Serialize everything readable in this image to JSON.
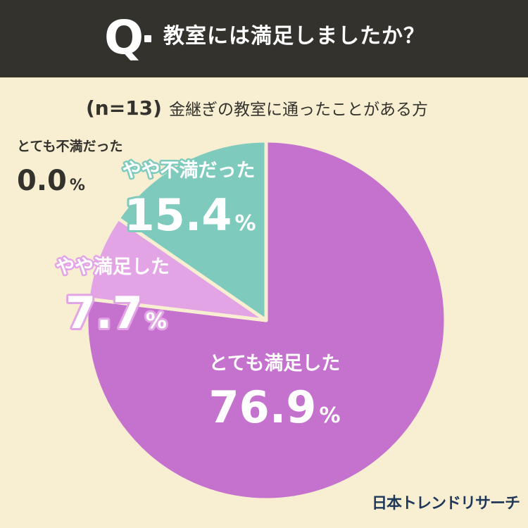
{
  "header": {
    "q_mark": "Q",
    "question": "教室には満足しましたか？",
    "background": "#33322d"
  },
  "subtitle": {
    "n_label": "(n=13)",
    "description": "金継ぎの教室に通ったことがある方"
  },
  "chart_data": {
    "type": "pie",
    "title": "教室には満足しましたか？",
    "slices": [
      {
        "label": "とても満足した",
        "value": 76.9,
        "display": "76.9",
        "color": "#c571ce"
      },
      {
        "label": "やや満足した",
        "value": 7.7,
        "display": "7.7",
        "color": "#e3a4e6"
      },
      {
        "label": "やや不満だった",
        "value": 15.4,
        "display": "15.4",
        "color": "#7ecbbd"
      },
      {
        "label": "とても不満だった",
        "value": 0.0,
        "display": "0.0",
        "color": "#f8efd3"
      }
    ],
    "unit": "%"
  },
  "brand": "日本トレンドリサーチ",
  "colors": {
    "background": "#f8efd3",
    "text": "#33322d",
    "brand": "#1f3759"
  }
}
